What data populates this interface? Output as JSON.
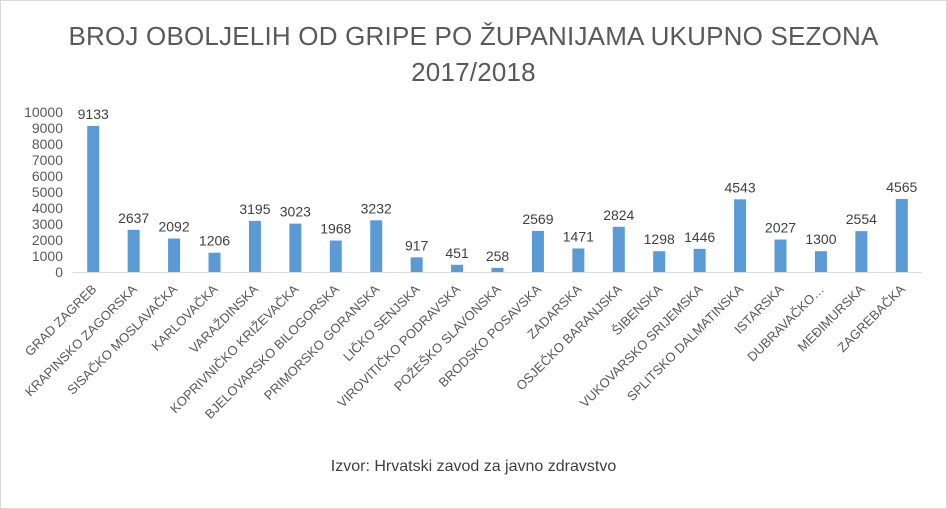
{
  "chart_data": {
    "type": "bar",
    "title_line1": "BROJ OBOLJELIH OD GRIPE PO ŽUPANIJAMA UKUPNO SEZONA",
    "title_line2": "2017/2018",
    "xlabel": "",
    "ylabel": "",
    "ylim": [
      0,
      10000
    ],
    "yticks": [
      "0",
      "1000",
      "2000",
      "3000",
      "4000",
      "5000",
      "6000",
      "7000",
      "8000",
      "9000",
      "10000"
    ],
    "grid": false,
    "legend": "none",
    "bar_color": "#5b9bd5",
    "categories": [
      "GRAD ZAGREB",
      "KRAPINSKO ZAGORSKA",
      "SISAČKO MOSLAVAČKA",
      "KARLOVAČKA",
      "VARAŽDINSKA",
      "KOPRIVNIČKO KRIŽEVAČKA",
      "BJELOVARSKO BILOGORSKA",
      "PRIMORSKO GORANSKA",
      "LIČKO SENJSKA",
      "VIROVITIČKO PODRAVSKA",
      "POŽEŠKO SLAVONSKA",
      "BRODSKO POSAVSKA",
      "ZADARSKA",
      "OSJEČKO BARANJSKA",
      "ŠIBENSKA",
      "VUKOVARSKO SRIJEMSKA",
      "SPLITSKO DALMATINSKA",
      "ISTARSKA",
      "DUBRAVAČKO…",
      "MEĐIMURSKA",
      "ZAGREBAČKA"
    ],
    "values": [
      9133,
      2637,
      2092,
      1206,
      3195,
      3023,
      1968,
      3232,
      917,
      451,
      258,
      2569,
      1471,
      2824,
      1298,
      1446,
      4543,
      2027,
      1300,
      2554,
      4565
    ],
    "source": "Izvor: Hrvatski zavod za javno zdravstvo"
  }
}
